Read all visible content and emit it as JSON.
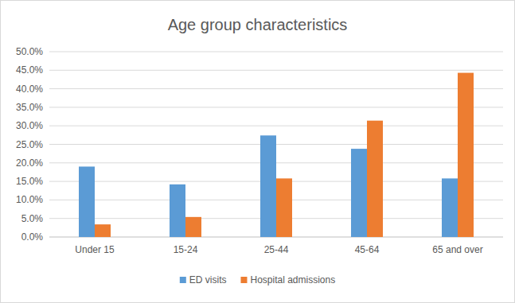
{
  "chart_data": {
    "type": "bar",
    "title": "Age group characteristics",
    "categories": [
      "Under 15",
      "15-24",
      "25-44",
      "45-64",
      "65 and over"
    ],
    "series": [
      {
        "name": "ED visits",
        "color": "#5b9bd5",
        "values": [
          19.0,
          14.2,
          27.4,
          23.8,
          15.8
        ]
      },
      {
        "name": "Hospital admissions",
        "color": "#ed7d31",
        "values": [
          3.4,
          5.4,
          15.8,
          31.4,
          44.3
        ]
      }
    ],
    "ylim": [
      0,
      50
    ],
    "yticks": [
      {
        "value": 0,
        "label": "0.0%"
      },
      {
        "value": 5,
        "label": "5.0%"
      },
      {
        "value": 10,
        "label": "10.0%"
      },
      {
        "value": 15,
        "label": "15.0%"
      },
      {
        "value": 20,
        "label": "20.0%"
      },
      {
        "value": 25,
        "label": "25.0%"
      },
      {
        "value": 30,
        "label": "30.0%"
      },
      {
        "value": 35,
        "label": "35.0%"
      },
      {
        "value": 40,
        "label": "40.0%"
      },
      {
        "value": 45,
        "label": "45.0%"
      },
      {
        "value": 50,
        "label": "50.0%"
      }
    ],
    "grid": true,
    "legend": "bottom"
  }
}
